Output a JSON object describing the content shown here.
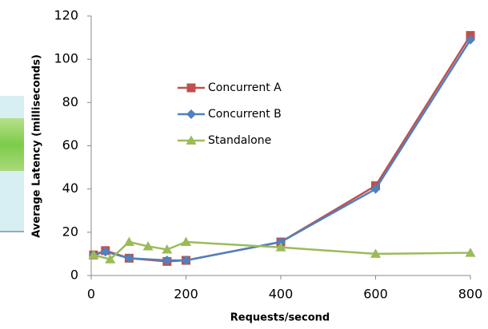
{
  "chart_data": {
    "type": "line",
    "x_label": "Requests/second",
    "y_label": "Average Latency (milliseconds)",
    "xlim": [
      0,
      800
    ],
    "xticks": [
      0,
      200,
      400,
      600,
      800
    ],
    "ylim": [
      0,
      120
    ],
    "yticks": [
      0,
      20,
      40,
      60,
      80,
      100,
      120
    ],
    "grid": false,
    "legend": "center",
    "series": [
      {
        "name": "Concurrent A",
        "color": "#c0504d",
        "marker": "square",
        "x": [
          5,
          30,
          80,
          160,
          200,
          400,
          600,
          800
        ],
        "values": [
          9.5,
          11.5,
          8,
          6.5,
          7,
          15.5,
          41.5,
          111
        ]
      },
      {
        "name": "Concurrent B",
        "color": "#4f81bd",
        "marker": "diamond",
        "x": [
          5,
          30,
          80,
          160,
          200,
          400,
          600,
          800
        ],
        "values": [
          9.5,
          11,
          8,
          7,
          7,
          15.5,
          40,
          109
        ]
      },
      {
        "name": "Standalone",
        "color": "#9bbb59",
        "marker": "triangle",
        "x": [
          5,
          40,
          80,
          120,
          160,
          200,
          400,
          600,
          800
        ],
        "values": [
          9.5,
          7.5,
          15.5,
          13.5,
          12,
          15.5,
          13,
          10,
          10.5
        ]
      }
    ]
  }
}
